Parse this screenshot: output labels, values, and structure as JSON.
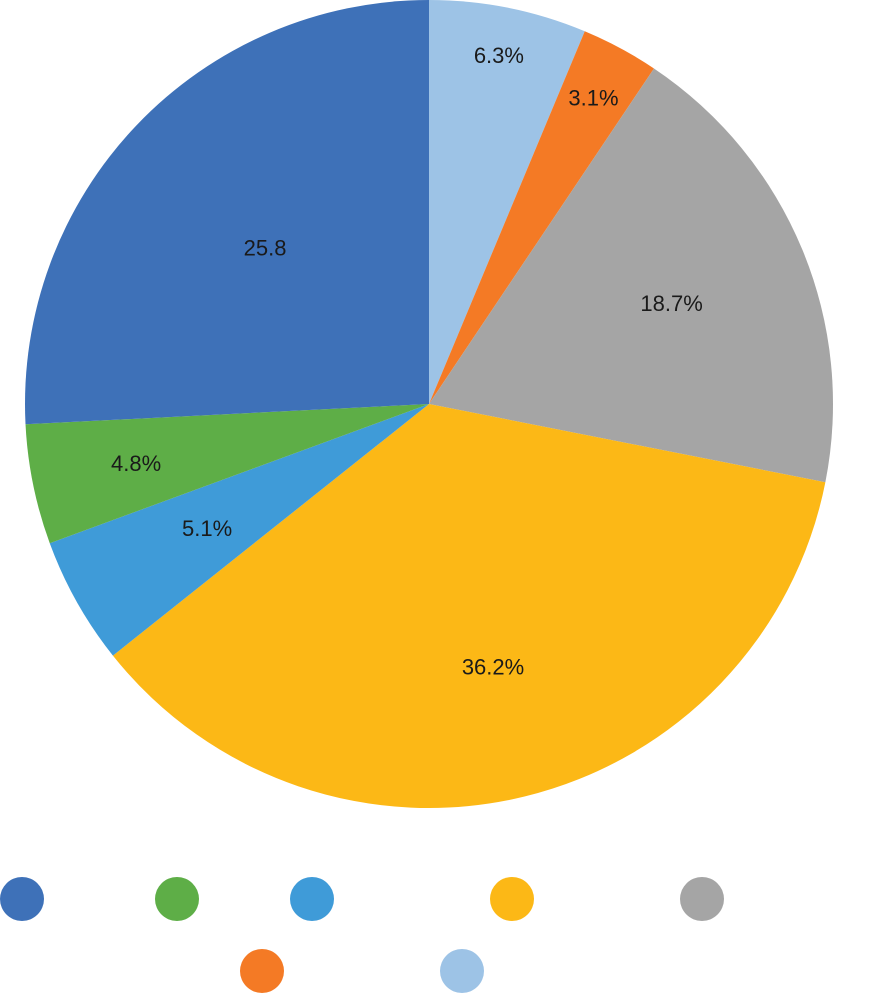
{
  "chart_data": {
    "type": "pie",
    "slices": [
      {
        "value": 6.3,
        "label": "6.3%",
        "color": "#9dc3e6"
      },
      {
        "value": 3.1,
        "label": "3.1%",
        "color": "#f47a25"
      },
      {
        "value": 18.7,
        "label": "18.7%",
        "color": "#a5a5a5"
      },
      {
        "value": 36.2,
        "label": "36.2%",
        "color": "#fcb816"
      },
      {
        "value": 5.1,
        "label": "5.1%",
        "color": "#3f9bd8"
      },
      {
        "value": 4.8,
        "label": "4.8%",
        "color": "#5eae47"
      },
      {
        "value": 25.8,
        "label": "25.8",
        "color": "#3e71b8"
      }
    ],
    "start_angle_deg": 0,
    "direction": "clockwise",
    "legend": {
      "position": "bottom",
      "markers": [
        {
          "color": "#3e71b8"
        },
        {
          "color": "#5eae47"
        },
        {
          "color": "#3f9bd8"
        },
        {
          "color": "#fcb816"
        },
        {
          "color": "#a5a5a5"
        },
        {
          "color": "#f47a25"
        },
        {
          "color": "#9dc3e6"
        }
      ]
    }
  }
}
